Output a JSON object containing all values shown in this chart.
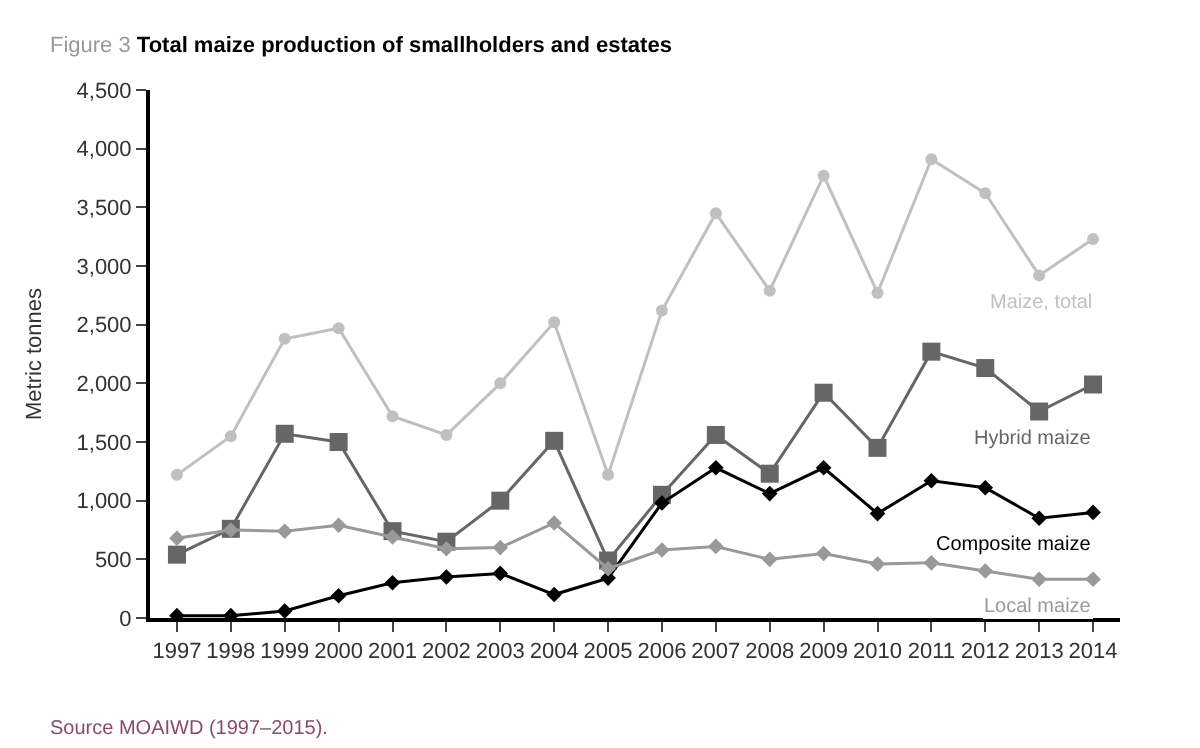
{
  "chart_data": {
    "type": "line",
    "title": "Figure 3",
    "subtitle": "Total maize production of smallholders and estates",
    "ylabel": "Metric tonnes",
    "categories": [
      "1997",
      "1998",
      "1999",
      "2000",
      "2001",
      "2002",
      "2003",
      "2004",
      "2005",
      "2006",
      "2007",
      "2008",
      "2009",
      "2010",
      "2011",
      "2012",
      "2013",
      "2014"
    ],
    "series": [
      {
        "name": "Maize, total",
        "color": "#c0c0c0",
        "marker": "circle",
        "values": [
          1220,
          1550,
          2380,
          2470,
          1720,
          1560,
          2000,
          2520,
          1220,
          2620,
          3450,
          2790,
          3770,
          2770,
          3910,
          3620,
          2920,
          3230
        ]
      },
      {
        "name": "Hybrid maize",
        "color": "#666666",
        "marker": "square",
        "values": [
          540,
          760,
          1570,
          1500,
          740,
          650,
          1000,
          1510,
          490,
          1050,
          1560,
          1230,
          1920,
          1450,
          2270,
          2130,
          1760,
          1990
        ]
      },
      {
        "name": "Composite maize",
        "color": "#000000",
        "marker": "diamond",
        "values": [
          20,
          20,
          60,
          190,
          300,
          350,
          380,
          200,
          340,
          980,
          1280,
          1060,
          1280,
          890,
          1170,
          1110,
          850,
          900
        ]
      },
      {
        "name": "Local maize",
        "color": "#999999",
        "marker": "diamond",
        "values": [
          680,
          750,
          740,
          790,
          690,
          590,
          600,
          810,
          420,
          580,
          610,
          500,
          550,
          460,
          470,
          400,
          330,
          330
        ]
      }
    ],
    "ylim": [
      0,
      4500
    ],
    "yticks": [
      {
        "value": 0,
        "label": "0"
      },
      {
        "value": 500,
        "label": "500"
      },
      {
        "value": 1000,
        "label": "1,000"
      },
      {
        "value": 1500,
        "label": "1,500"
      },
      {
        "value": 2000,
        "label": "2,000"
      },
      {
        "value": 2500,
        "label": "2,500"
      },
      {
        "value": 3000,
        "label": "3,000"
      },
      {
        "value": 3500,
        "label": "3,500"
      },
      {
        "value": 4000,
        "label": "4,000"
      },
      {
        "value": 4500,
        "label": "4,500"
      }
    ],
    "legend": false,
    "line_style": "solid",
    "annotations": [
      "Source MOAIWD (1997–2015)."
    ]
  }
}
